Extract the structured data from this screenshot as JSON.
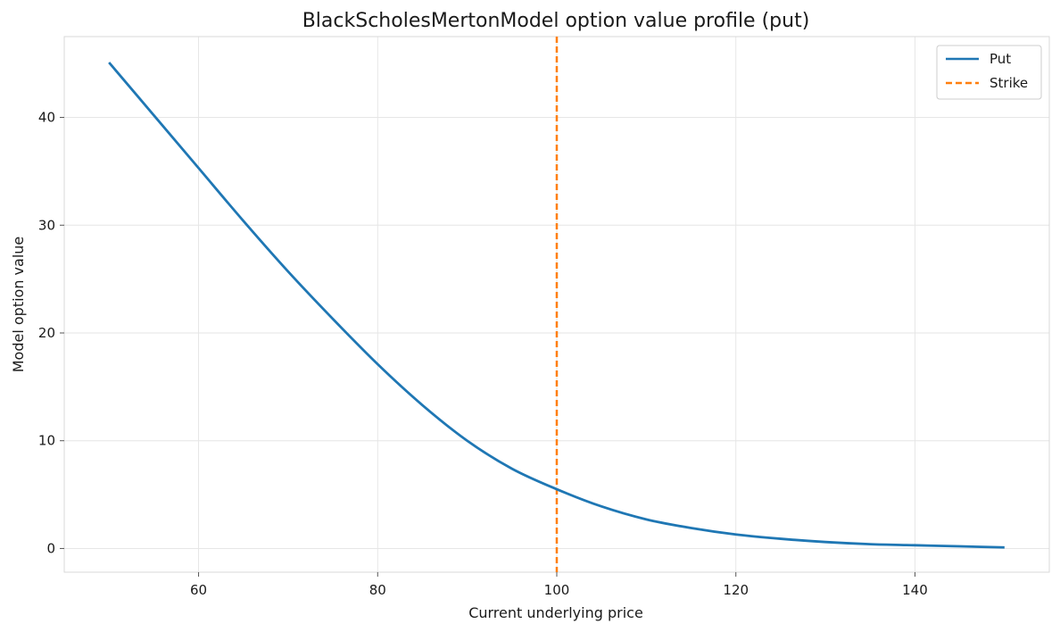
{
  "chart_data": {
    "type": "line",
    "title": "BlackScholesMertonModel option value profile (put)",
    "xlabel": "Current underlying price",
    "ylabel": "Model option value",
    "xlim": [
      45,
      155
    ],
    "ylim": [
      -2.2,
      47.5
    ],
    "xticks": [
      60,
      80,
      100,
      120,
      140
    ],
    "yticks": [
      0,
      10,
      20,
      30,
      40
    ],
    "grid": true,
    "legend_position": "top-right",
    "colors": {
      "put": "#1f77b4",
      "strike": "#ff7f0e"
    },
    "series": [
      {
        "name": "Put",
        "style": "solid",
        "x": [
          50,
          55,
          60,
          65,
          70,
          75,
          80,
          85,
          90,
          95,
          100,
          105,
          110,
          115,
          120,
          125,
          130,
          135,
          140,
          145,
          150
        ],
        "y": [
          45.1,
          40.2,
          35.3,
          30.4,
          25.7,
          21.3,
          17.1,
          13.3,
          10.0,
          7.4,
          5.5,
          3.9,
          2.7,
          1.9,
          1.3,
          0.9,
          0.6,
          0.4,
          0.3,
          0.2,
          0.1
        ]
      }
    ],
    "vlines": [
      {
        "name": "Strike",
        "x": 100,
        "style": "dashed"
      }
    ]
  }
}
